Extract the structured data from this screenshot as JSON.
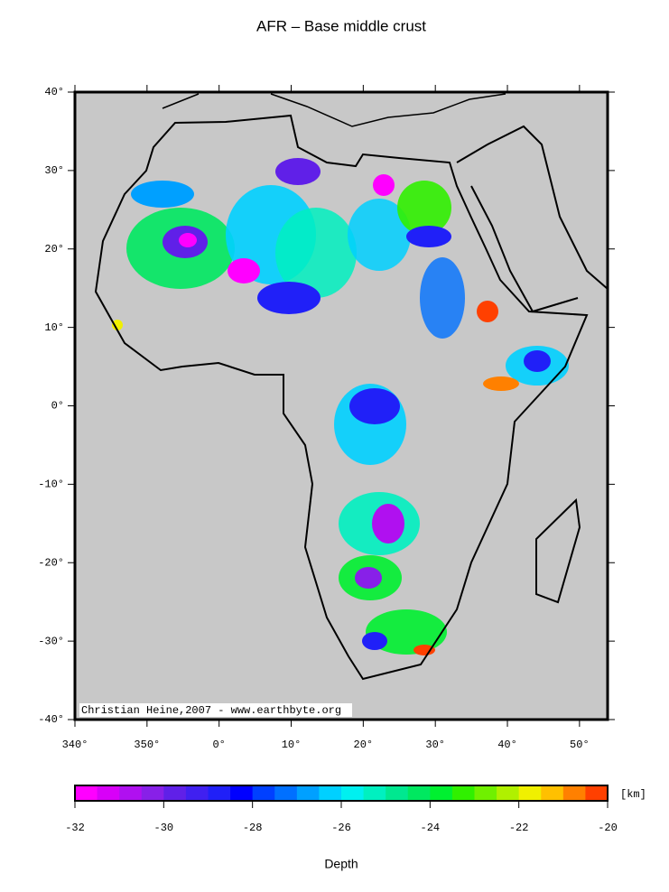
{
  "map": {
    "title": "AFR – Base middle crust",
    "credit": "Christian Heine,2007 - www.earthbyte.org",
    "lonlim": [
      -20,
      53.9
    ],
    "latlim": [
      -40,
      40
    ],
    "lonticks": [
      {
        "value": -20,
        "label": "340°"
      },
      {
        "value": -10,
        "label": "350°"
      },
      {
        "value": 0,
        "label": "0°"
      },
      {
        "value": 10,
        "label": "10°"
      },
      {
        "value": 20,
        "label": "20°"
      },
      {
        "value": 30,
        "label": "30°"
      },
      {
        "value": 40,
        "label": "40°"
      },
      {
        "value": 50,
        "label": "50°"
      }
    ],
    "latticks": [
      {
        "value": 40,
        "label": "40°"
      },
      {
        "value": 30,
        "label": "30°"
      },
      {
        "value": 20,
        "label": "20°"
      },
      {
        "value": 10,
        "label": "10°"
      },
      {
        "value": 0,
        "label": "0°"
      },
      {
        "value": -10,
        "label": "-10°"
      },
      {
        "value": -20,
        "label": "-20°"
      },
      {
        "value": -30,
        "label": "-30°"
      },
      {
        "value": -40,
        "label": "-40°"
      }
    ],
    "colorbar": {
      "label": "Depth",
      "unit": "[km]",
      "lim": [
        -32,
        -20
      ],
      "ticks": [
        -32,
        -30,
        -28,
        -26,
        -24,
        -22,
        -20
      ],
      "colors": [
        "#ff00ff",
        "#d800f8",
        "#b010f0",
        "#8820e8",
        "#6020e8",
        "#4020f0",
        "#2020f8",
        "#0000ff",
        "#0040ff",
        "#0070ff",
        "#00a0ff",
        "#00d0ff",
        "#00f0f0",
        "#00f0c0",
        "#00e890",
        "#00e860",
        "#00f030",
        "#30f000",
        "#70f000",
        "#b0f000",
        "#f0f000",
        "#ffc000",
        "#ff8000",
        "#ff4000"
      ]
    }
  }
}
